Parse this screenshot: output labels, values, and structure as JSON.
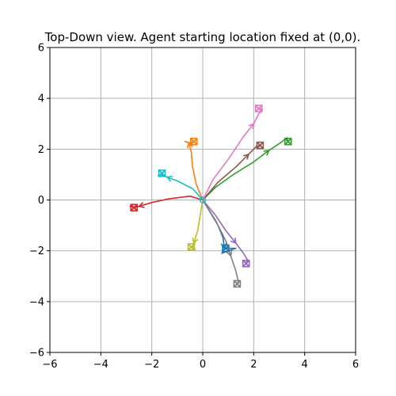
{
  "chart_data": {
    "type": "line",
    "title": "Top-Down view.  Agent starting location fixed at (0,0).",
    "xlabel": "",
    "ylabel": "",
    "xlim": [
      -6,
      6
    ],
    "ylim": [
      -6,
      6
    ],
    "xticks": [
      -6,
      -4,
      -2,
      0,
      2,
      4,
      6
    ],
    "yticks": [
      -6,
      -4,
      -2,
      0,
      2,
      4,
      6
    ],
    "tick_labels_x": [
      "−6",
      "−4",
      "−2",
      "0",
      "2",
      "4",
      "6"
    ],
    "tick_labels_y": [
      "−6",
      "−4",
      "−2",
      "0",
      "2",
      "4",
      "6"
    ],
    "grid": true,
    "legend": "none",
    "start_point": [
      0,
      0
    ],
    "series": [
      {
        "color": "#1f77b4",
        "points": [
          [
            0,
            0
          ],
          [
            0.3,
            -0.5
          ],
          [
            0.6,
            -1.0
          ],
          [
            0.8,
            -1.5
          ],
          [
            0.85,
            -1.9
          ],
          [
            0.75,
            -2.1
          ],
          [
            1.0,
            -2.0
          ],
          [
            1.3,
            -1.9
          ],
          [
            0.9,
            -1.9
          ]
        ]
      },
      {
        "color": "#ff7f0e",
        "points": [
          [
            0,
            0
          ],
          [
            -0.25,
            0.6
          ],
          [
            -0.4,
            1.3
          ],
          [
            -0.45,
            1.9
          ],
          [
            -0.55,
            2.25
          ],
          [
            -0.7,
            2.3
          ],
          [
            -0.5,
            2.25
          ],
          [
            -0.35,
            2.3
          ]
        ]
      },
      {
        "color": "#2ca02c",
        "points": [
          [
            0,
            0
          ],
          [
            0.5,
            0.5
          ],
          [
            1.2,
            1.0
          ],
          [
            2.0,
            1.5
          ],
          [
            2.6,
            1.95
          ],
          [
            3.05,
            2.25
          ],
          [
            3.3,
            2.45
          ],
          [
            3.35,
            2.3
          ]
        ]
      },
      {
        "color": "#d62728",
        "points": [
          [
            0,
            0
          ],
          [
            -0.5,
            0.15
          ],
          [
            -1.3,
            0.05
          ],
          [
            -2.0,
            -0.1
          ],
          [
            -2.5,
            -0.25
          ],
          [
            -2.7,
            -0.3
          ],
          [
            -2.85,
            -0.25
          ],
          [
            -2.7,
            -0.3
          ]
        ]
      },
      {
        "color": "#9467bd",
        "points": [
          [
            0,
            0
          ],
          [
            0.5,
            -0.6
          ],
          [
            0.9,
            -1.2
          ],
          [
            1.3,
            -1.7
          ],
          [
            1.6,
            -2.1
          ],
          [
            1.75,
            -2.35
          ],
          [
            1.7,
            -2.5
          ]
        ]
      },
      {
        "color": "#8c564b",
        "points": [
          [
            0,
            0
          ],
          [
            0.6,
            0.7
          ],
          [
            1.3,
            1.3
          ],
          [
            1.8,
            1.8
          ],
          [
            2.1,
            2.1
          ],
          [
            2.25,
            2.15
          ]
        ]
      },
      {
        "color": "#e377c2",
        "points": [
          [
            0,
            0
          ],
          [
            0.4,
            0.8
          ],
          [
            1.0,
            1.6
          ],
          [
            1.6,
            2.5
          ],
          [
            2.0,
            3.0
          ],
          [
            2.2,
            3.4
          ],
          [
            2.35,
            3.55
          ],
          [
            2.2,
            3.6
          ]
        ]
      },
      {
        "color": "#7f7f7f",
        "points": [
          [
            0,
            0
          ],
          [
            0.5,
            -0.8
          ],
          [
            0.9,
            -1.6
          ],
          [
            1.1,
            -2.2
          ],
          [
            1.3,
            -2.8
          ],
          [
            1.4,
            -3.2
          ],
          [
            1.35,
            -3.3
          ]
        ]
      },
      {
        "color": "#bcbd22",
        "points": [
          [
            0,
            0
          ],
          [
            -0.1,
            -0.6
          ],
          [
            -0.2,
            -1.2
          ],
          [
            -0.35,
            -1.7
          ],
          [
            -0.4,
            -1.9
          ],
          [
            -0.3,
            -1.95
          ],
          [
            -0.45,
            -1.85
          ]
        ]
      },
      {
        "color": "#17becf",
        "points": [
          [
            0,
            0
          ],
          [
            -0.4,
            0.45
          ],
          [
            -1.0,
            0.75
          ],
          [
            -1.4,
            0.9
          ],
          [
            -1.65,
            1.0
          ],
          [
            -1.75,
            0.95
          ],
          [
            -1.6,
            1.05
          ]
        ]
      }
    ]
  }
}
